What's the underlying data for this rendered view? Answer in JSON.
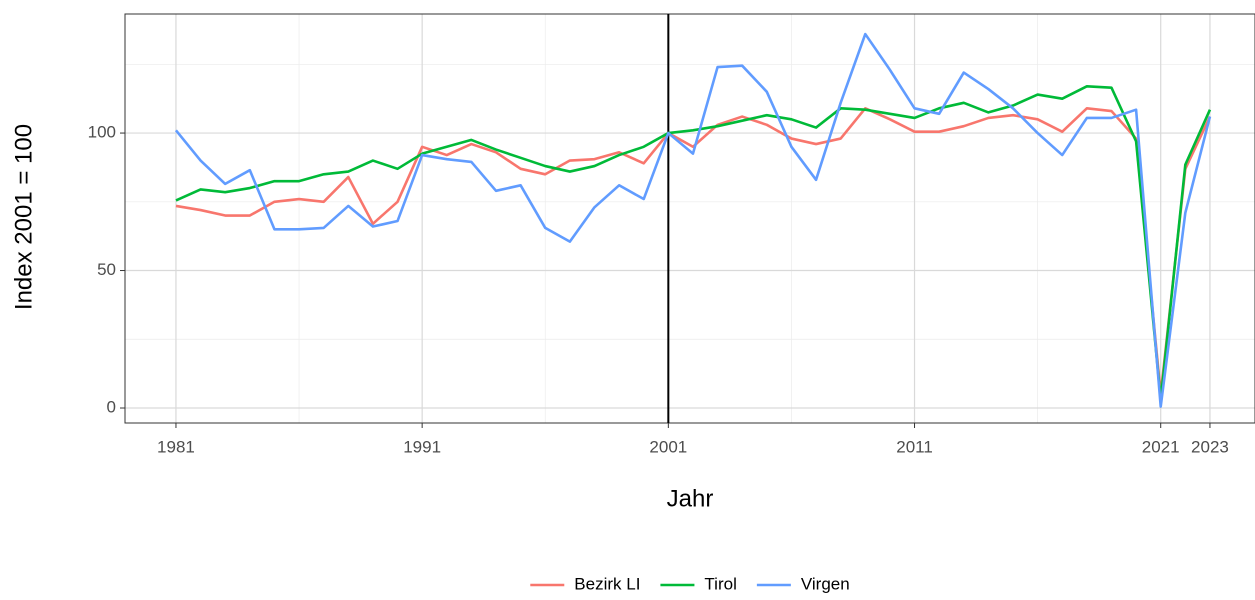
{
  "chart_data": {
    "type": "line",
    "x_label": "Jahr",
    "y_label": "Index 2001 = 100",
    "x": [
      1981,
      1982,
      1983,
      1984,
      1985,
      1986,
      1987,
      1988,
      1989,
      1990,
      1991,
      1992,
      1993,
      1994,
      1995,
      1996,
      1997,
      1998,
      1999,
      2000,
      2001,
      2002,
      2003,
      2004,
      2005,
      2006,
      2007,
      2008,
      2009,
      2010,
      2011,
      2012,
      2013,
      2014,
      2015,
      2016,
      2017,
      2018,
      2019,
      2020,
      2021,
      2022,
      2023
    ],
    "series": [
      {
        "name": "Bezirk LI",
        "color": "#f8766d",
        "values": [
          73.5,
          72,
          70,
          70,
          75,
          76,
          75,
          84,
          67,
          75,
          95,
          92,
          96,
          93,
          87,
          85,
          90,
          90.5,
          93,
          89,
          100,
          95,
          103,
          106,
          103,
          98,
          96,
          98,
          109,
          105,
          100.5,
          100.5,
          102.5,
          105.5,
          106.5,
          105,
          100.5,
          109,
          108,
          98,
          5,
          87,
          106
        ]
      },
      {
        "name": "Tirol",
        "color": "#00ba38",
        "values": [
          75.5,
          79.5,
          78.5,
          80,
          82.5,
          82.5,
          85,
          86,
          90,
          87,
          92.5,
          95,
          97.5,
          94,
          91,
          88,
          86,
          88,
          92,
          95,
          100,
          101,
          102.5,
          104.5,
          106.5,
          105,
          102,
          109,
          108.5,
          107,
          105.5,
          109,
          111,
          107.5,
          110,
          114,
          112.5,
          117,
          116.5,
          97,
          3,
          88.5,
          108.5
        ]
      },
      {
        "name": "Virgen",
        "color": "#619cff",
        "values": [
          101,
          90,
          81.5,
          86.5,
          65,
          65,
          65.5,
          73.5,
          66,
          68,
          92,
          90.5,
          89.5,
          79,
          81,
          65.5,
          60.5,
          73,
          81,
          76,
          100,
          92.5,
          124,
          124.5,
          115,
          95,
          83,
          111,
          136,
          123,
          109,
          107,
          122,
          116,
          109,
          100,
          92,
          105.5,
          105.5,
          108.5,
          0.5,
          71,
          106
        ]
      }
    ],
    "xlim": [
      1978.93,
      2024.83
    ],
    "xticks": [
      1981,
      1991,
      2001,
      2011,
      2021,
      2023
    ],
    "ylim": [
      -5.45,
      143.3
    ],
    "yticks": [
      0,
      50,
      100
    ],
    "vline": 2001,
    "grid": true,
    "legend": "bottom"
  }
}
